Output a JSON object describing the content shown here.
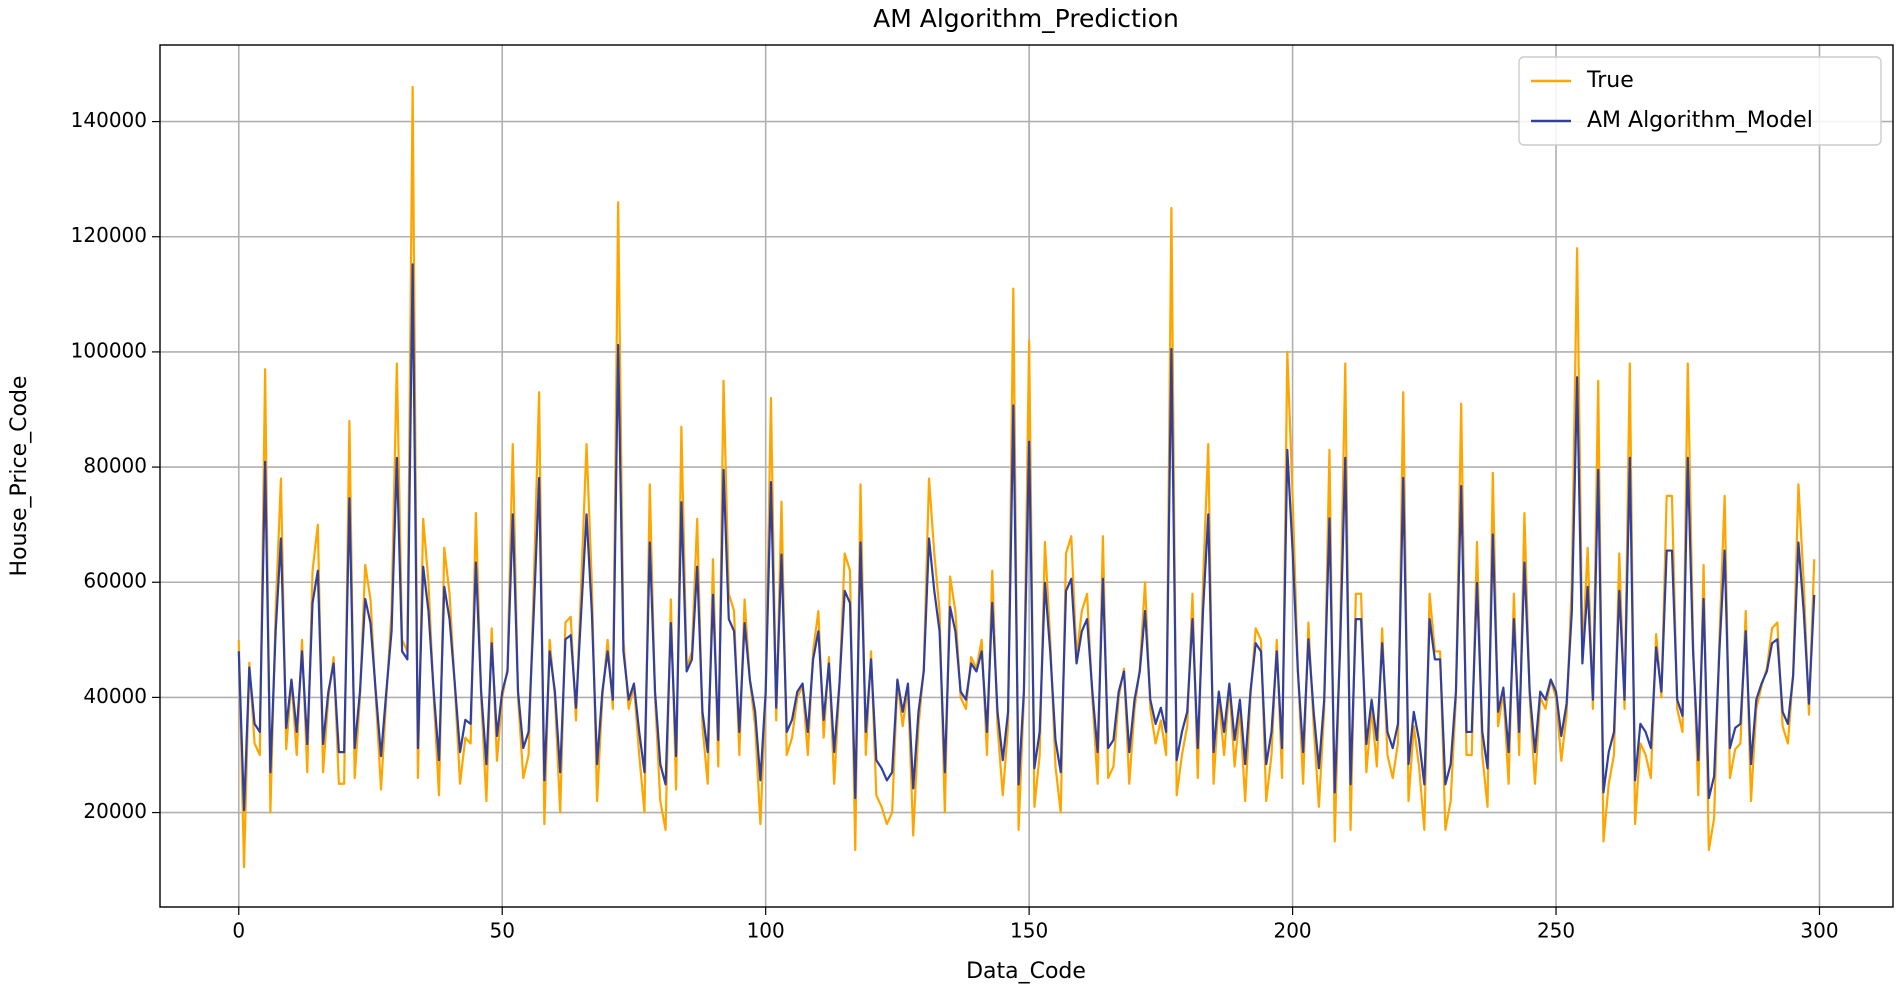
{
  "chart_data": {
    "type": "line",
    "title": "AM Algorithm_Prediction",
    "xlabel": "Data_Code",
    "ylabel": "House_Price_Code",
    "x": [
      0,
      1,
      2,
      3,
      4,
      5,
      6,
      7,
      8,
      9,
      10,
      11,
      12,
      13,
      14,
      15,
      16,
      17,
      18,
      19,
      20,
      21,
      22,
      23,
      24,
      25,
      26,
      27,
      28,
      29,
      30,
      31,
      32,
      33,
      34,
      35,
      36,
      37,
      38,
      39,
      40,
      41,
      42,
      43,
      44,
      45,
      46,
      47,
      48,
      49,
      50,
      51,
      52,
      53,
      54,
      55,
      56,
      57,
      58,
      59,
      60,
      61,
      62,
      63,
      64,
      65,
      66,
      67,
      68,
      69,
      70,
      71,
      72,
      73,
      74,
      75,
      76,
      77,
      78,
      79,
      80,
      81,
      82,
      83,
      84,
      85,
      86,
      87,
      88,
      89,
      90,
      91,
      92,
      93,
      94,
      95,
      96,
      97,
      98,
      99,
      100,
      101,
      102,
      103,
      104,
      105,
      106,
      107,
      108,
      109,
      110,
      111,
      112,
      113,
      114,
      115,
      116,
      117,
      118,
      119,
      120,
      121,
      122,
      123,
      124,
      125,
      126,
      127,
      128,
      129,
      130,
      131,
      132,
      133,
      134,
      135,
      136,
      137,
      138,
      139,
      140,
      141,
      142,
      143,
      144,
      145,
      146,
      147,
      148,
      149,
      150,
      151,
      152,
      153,
      154,
      155,
      156,
      157,
      158,
      159,
      160,
      161,
      162,
      163,
      164,
      165,
      166,
      167,
      168,
      169,
      170,
      171,
      172,
      173,
      174,
      175,
      176,
      177,
      178,
      179,
      180,
      181,
      182,
      183,
      184,
      185,
      186,
      187,
      188,
      189,
      190,
      191,
      192,
      193,
      194,
      195,
      196,
      197,
      198,
      199,
      200,
      201,
      202,
      203,
      204,
      205,
      206,
      207,
      208,
      209,
      210,
      211,
      212,
      213,
      214,
      215,
      216,
      217,
      218,
      219,
      220,
      221,
      222,
      223,
      224,
      225,
      226,
      227,
      228,
      229,
      230,
      231,
      232,
      233,
      234,
      235,
      236,
      237,
      238,
      239,
      240,
      241,
      242,
      243,
      244,
      245,
      246,
      247,
      248,
      249,
      250,
      251,
      252,
      253,
      254,
      255,
      256,
      257,
      258,
      259,
      260,
      261,
      262,
      263,
      264,
      265,
      266,
      267,
      268,
      269,
      270,
      271,
      272,
      273,
      274,
      275,
      276,
      277,
      278,
      279,
      280,
      281,
      282,
      283,
      284,
      285,
      286,
      287,
      288,
      289,
      290,
      291,
      292,
      293,
      294,
      295,
      296,
      297,
      298,
      299
    ],
    "series": [
      {
        "name": "True",
        "color": "#ffa500",
        "values": [
          50000,
          10500,
          46000,
          32000,
          30000,
          97000,
          20000,
          55000,
          78000,
          31000,
          43000,
          30000,
          50000,
          27000,
          62000,
          70000,
          27000,
          40000,
          47000,
          25000,
          25000,
          88000,
          26000,
          40000,
          63000,
          57000,
          40000,
          24000,
          40000,
          55000,
          98000,
          50000,
          48000,
          146000,
          26000,
          71000,
          60000,
          40000,
          23000,
          66000,
          58000,
          42000,
          25000,
          33000,
          32000,
          72000,
          40000,
          22000,
          52000,
          29000,
          40000,
          45000,
          84000,
          40000,
          26000,
          30000,
          60000,
          93000,
          18000,
          50000,
          40000,
          20000,
          53000,
          54000,
          36000,
          60000,
          84000,
          60000,
          22000,
          40000,
          50000,
          38000,
          126000,
          50000,
          38000,
          42000,
          30000,
          20000,
          77000,
          40000,
          22000,
          17000,
          57000,
          24000,
          87000,
          45000,
          48000,
          71000,
          35000,
          25000,
          64000,
          28000,
          95000,
          58000,
          55000,
          30000,
          57000,
          43000,
          35000,
          18000,
          40000,
          92000,
          36000,
          74000,
          30000,
          33000,
          40000,
          42000,
          30000,
          48000,
          55000,
          33000,
          47000,
          25000,
          42000,
          65000,
          62000,
          13500,
          77000,
          30000,
          48000,
          23000,
          21000,
          18000,
          20000,
          43000,
          35000,
          42000,
          16000,
          35000,
          45000,
          78000,
          65000,
          55000,
          20000,
          61000,
          55000,
          40000,
          38000,
          47000,
          45000,
          50000,
          30000,
          62000,
          35000,
          23000,
          35000,
          111000,
          17000,
          40000,
          102000,
          21000,
          30000,
          67000,
          50000,
          28000,
          20000,
          65000,
          68000,
          47000,
          55000,
          58000,
          40000,
          25000,
          68000,
          26000,
          28000,
          40000,
          45000,
          25000,
          38000,
          45000,
          60000,
          38000,
          32000,
          36000,
          30000,
          125000,
          23000,
          30000,
          35000,
          58000,
          26000,
          60000,
          84000,
          25000,
          40000,
          30000,
          42000,
          28000,
          38000,
          22000,
          40000,
          52000,
          50000,
          22000,
          30000,
          50000,
          26000,
          100000,
          75000,
          45000,
          25000,
          53000,
          35000,
          21000,
          38000,
          83000,
          15000,
          50000,
          98000,
          17000,
          58000,
          58000,
          27000,
          38000,
          28000,
          52000,
          30000,
          26000,
          32000,
          93000,
          22000,
          35000,
          28000,
          17000,
          58000,
          48000,
          48000,
          17000,
          22000,
          40000,
          91000,
          30000,
          30000,
          67000,
          30000,
          21000,
          79000,
          35000,
          41000,
          25000,
          58000,
          30000,
          72000,
          40000,
          25000,
          40000,
          38000,
          43000,
          40000,
          29000,
          37000,
          60000,
          118000,
          47000,
          66000,
          38000,
          95000,
          15000,
          25000,
          30000,
          65000,
          38000,
          98000,
          18000,
          32000,
          30000,
          26000,
          51000,
          40000,
          75000,
          75000,
          38000,
          34000,
          98000,
          50000,
          23000,
          63000,
          13500,
          19000,
          50000,
          75000,
          26000,
          31000,
          32000,
          55000,
          22000,
          38000,
          42000,
          45000,
          52000,
          53000,
          35000,
          32000,
          44000,
          77000,
          60000,
          37000,
          64000
        ]
      },
      {
        "name": "AM Algorithm_Model",
        "color": "#3040a0",
        "values": [
          48000,
          20400,
          45200,
          35400,
          34000,
          80900,
          27000,
          51500,
          67600,
          34700,
          43100,
          34000,
          48000,
          31900,
          56400,
          62000,
          31900,
          41000,
          45900,
          30500,
          30500,
          74600,
          31200,
          41000,
          57100,
          52900,
          41000,
          29800,
          41000,
          51500,
          81600,
          48000,
          46600,
          115200,
          31200,
          62700,
          55000,
          41000,
          29100,
          59200,
          53600,
          42400,
          30500,
          36100,
          35400,
          63400,
          41000,
          28400,
          49400,
          33300,
          41000,
          44500,
          71800,
          41000,
          31200,
          34000,
          55000,
          78100,
          25600,
          48000,
          41000,
          27000,
          50100,
          50800,
          38200,
          55000,
          71800,
          55000,
          28400,
          41000,
          48000,
          39600,
          101200,
          48000,
          39600,
          42400,
          34000,
          27000,
          66900,
          41000,
          28400,
          24900,
          52900,
          29800,
          73900,
          44500,
          46600,
          62700,
          37500,
          30500,
          57800,
          32600,
          79500,
          53600,
          51500,
          34000,
          52900,
          43100,
          37500,
          25600,
          41000,
          77400,
          38200,
          64800,
          34000,
          36100,
          41000,
          42400,
          34000,
          46600,
          51500,
          36100,
          45900,
          30500,
          42400,
          58500,
          56400,
          22500,
          66900,
          34000,
          46600,
          29100,
          27700,
          25600,
          27000,
          43100,
          37500,
          42400,
          24200,
          37500,
          44500,
          67600,
          58500,
          51500,
          27000,
          55700,
          51500,
          41000,
          39600,
          45900,
          44500,
          48000,
          34000,
          56400,
          37500,
          29100,
          37500,
          90700,
          24900,
          41000,
          84400,
          27700,
          34000,
          59900,
          48000,
          32600,
          27000,
          58500,
          60600,
          45900,
          51500,
          53600,
          41000,
          30500,
          60600,
          31200,
          32600,
          41000,
          44500,
          30500,
          39600,
          44500,
          55000,
          39600,
          35400,
          38200,
          34000,
          100500,
          29100,
          34000,
          37500,
          53600,
          31200,
          55000,
          71800,
          30500,
          41000,
          34000,
          42400,
          32600,
          39600,
          28400,
          41000,
          49400,
          48000,
          28400,
          34000,
          48000,
          31200,
          83000,
          65500,
          44500,
          30500,
          50100,
          37500,
          27700,
          39600,
          71100,
          23500,
          48000,
          81600,
          24900,
          53600,
          53600,
          31900,
          39600,
          32600,
          49400,
          34000,
          31200,
          35400,
          78100,
          28400,
          37500,
          32600,
          24900,
          53600,
          46600,
          46600,
          24900,
          28400,
          41000,
          76700,
          34000,
          34000,
          59900,
          34000,
          27700,
          68300,
          37500,
          41700,
          30500,
          53600,
          34000,
          63400,
          41000,
          30500,
          41000,
          39600,
          43100,
          41000,
          33300,
          38900,
          55000,
          95600,
          45900,
          59200,
          39600,
          79500,
          23500,
          30500,
          34000,
          58500,
          39600,
          81600,
          25600,
          35400,
          34000,
          31200,
          48700,
          41000,
          65500,
          65500,
          39600,
          36800,
          81600,
          48000,
          29100,
          57100,
          22500,
          26300,
          48000,
          65500,
          31200,
          34700,
          35400,
          51500,
          28400,
          39600,
          42400,
          44500,
          49400,
          50100,
          37500,
          35400,
          43800,
          66900,
          55000,
          38900,
          57800
        ]
      }
    ],
    "xlim": [
      -14.95,
      313.95
    ],
    "ylim": [
      3600,
      153300
    ],
    "xticks": [
      0,
      50,
      100,
      150,
      200,
      250,
      300
    ],
    "yticks": [
      20000,
      40000,
      60000,
      80000,
      100000,
      120000,
      140000
    ],
    "grid": true,
    "legend": "upper right"
  }
}
